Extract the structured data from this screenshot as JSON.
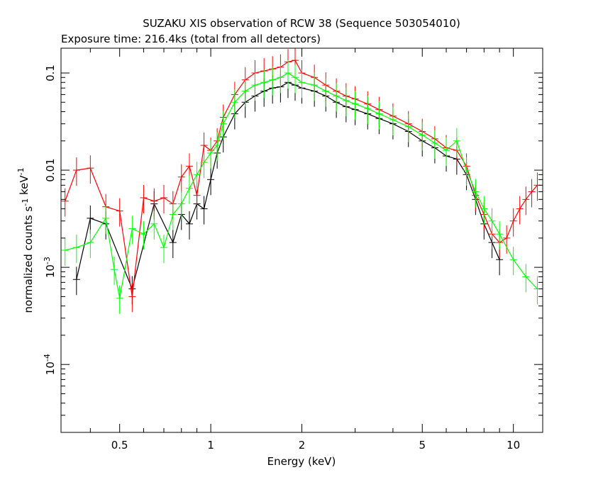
{
  "chart_data": {
    "type": "scatter",
    "title": "SUZAKU XIS observation of RCW 38 (Sequence 503054010)",
    "subtitle": "Exposure time: 216.4ks (total from all detectors)",
    "xlabel": "Energy (keV)",
    "ylabel": "normalized counts s-1 keV-1",
    "x_scale": "log",
    "y_scale": "log",
    "xlim": [
      0.32,
      12.5
    ],
    "ylim": [
      2e-05,
      0.18
    ],
    "x_ticks": [
      {
        "value": 0.5,
        "label": "0.5"
      },
      {
        "value": 1,
        "label": "1"
      },
      {
        "value": 2,
        "label": "2"
      },
      {
        "value": 5,
        "label": "5"
      },
      {
        "value": 10,
        "label": "10"
      }
    ],
    "y_ticks": [
      {
        "value": 0.1,
        "label": "0.1"
      },
      {
        "value": 0.01,
        "label": "0.01"
      },
      {
        "value": 0.001,
        "label": "10",
        "exp": "-3"
      },
      {
        "value": 0.0001,
        "label": "10",
        "exp": "-4"
      }
    ],
    "series": [
      {
        "color": "#000000",
        "points": [
          [
            0.36,
            0.00075
          ],
          [
            0.4,
            0.0032
          ],
          [
            0.45,
            0.0028
          ],
          [
            0.55,
            0.0006
          ],
          [
            0.65,
            0.0045
          ],
          [
            0.75,
            0.0018
          ],
          [
            0.8,
            0.0035
          ],
          [
            0.85,
            0.0028
          ],
          [
            0.9,
            0.0045
          ],
          [
            0.95,
            0.004
          ],
          [
            1.0,
            0.008
          ],
          [
            1.05,
            0.015
          ],
          [
            1.1,
            0.022
          ],
          [
            1.2,
            0.038
          ],
          [
            1.3,
            0.05
          ],
          [
            1.4,
            0.058
          ],
          [
            1.5,
            0.065
          ],
          [
            1.6,
            0.07
          ],
          [
            1.7,
            0.072
          ],
          [
            1.8,
            0.08
          ],
          [
            1.9,
            0.075
          ],
          [
            2.0,
            0.07
          ],
          [
            2.2,
            0.065
          ],
          [
            2.4,
            0.058
          ],
          [
            2.6,
            0.05
          ],
          [
            2.8,
            0.045
          ],
          [
            3.0,
            0.042
          ],
          [
            3.3,
            0.038
          ],
          [
            3.6,
            0.034
          ],
          [
            4.0,
            0.03
          ],
          [
            4.5,
            0.025
          ],
          [
            5.0,
            0.02
          ],
          [
            5.5,
            0.017
          ],
          [
            6.0,
            0.014
          ],
          [
            6.5,
            0.013
          ],
          [
            7.0,
            0.009
          ],
          [
            7.5,
            0.005
          ],
          [
            8.0,
            0.0028
          ],
          [
            8.5,
            0.0018
          ],
          [
            9.0,
            0.0012
          ]
        ]
      },
      {
        "color": "#ff0000",
        "points": [
          [
            0.33,
            0.0048
          ],
          [
            0.36,
            0.01
          ],
          [
            0.4,
            0.0105
          ],
          [
            0.45,
            0.0042
          ],
          [
            0.5,
            0.0038
          ],
          [
            0.55,
            0.0005
          ],
          [
            0.6,
            0.0052
          ],
          [
            0.65,
            0.0048
          ],
          [
            0.7,
            0.0052
          ],
          [
            0.75,
            0.0045
          ],
          [
            0.8,
            0.0085
          ],
          [
            0.85,
            0.011
          ],
          [
            0.9,
            0.0055
          ],
          [
            0.95,
            0.018
          ],
          [
            1.0,
            0.016
          ],
          [
            1.05,
            0.02
          ],
          [
            1.1,
            0.035
          ],
          [
            1.2,
            0.06
          ],
          [
            1.3,
            0.085
          ],
          [
            1.4,
            0.1
          ],
          [
            1.5,
            0.105
          ],
          [
            1.6,
            0.11
          ],
          [
            1.7,
            0.115
          ],
          [
            1.8,
            0.13
          ],
          [
            1.9,
            0.135
          ],
          [
            2.0,
            0.1
          ],
          [
            2.2,
            0.09
          ],
          [
            2.4,
            0.075
          ],
          [
            2.6,
            0.065
          ],
          [
            2.8,
            0.058
          ],
          [
            3.0,
            0.054
          ],
          [
            3.3,
            0.048
          ],
          [
            3.6,
            0.042
          ],
          [
            4.0,
            0.036
          ],
          [
            4.5,
            0.03
          ],
          [
            5.0,
            0.025
          ],
          [
            5.5,
            0.021
          ],
          [
            6.0,
            0.017
          ],
          [
            6.5,
            0.016
          ],
          [
            7.0,
            0.011
          ],
          [
            7.5,
            0.0055
          ],
          [
            8.0,
            0.0035
          ],
          [
            8.5,
            0.0022
          ],
          [
            9.0,
            0.0018
          ],
          [
            9.5,
            0.002
          ],
          [
            10.0,
            0.003
          ],
          [
            10.5,
            0.004
          ],
          [
            11.0,
            0.005
          ],
          [
            11.5,
            0.006
          ],
          [
            12.0,
            0.007
          ]
        ]
      },
      {
        "color": "#00ff00",
        "points": [
          [
            0.33,
            0.0015
          ],
          [
            0.36,
            0.0016
          ],
          [
            0.4,
            0.0018
          ],
          [
            0.45,
            0.0032
          ],
          [
            0.48,
            0.00095
          ],
          [
            0.5,
            0.00048
          ],
          [
            0.55,
            0.0025
          ],
          [
            0.6,
            0.0022
          ],
          [
            0.65,
            0.0028
          ],
          [
            0.7,
            0.0016
          ],
          [
            0.75,
            0.0035
          ],
          [
            0.8,
            0.0045
          ],
          [
            0.85,
            0.0065
          ],
          [
            0.9,
            0.009
          ],
          [
            0.95,
            0.012
          ],
          [
            1.0,
            0.015
          ],
          [
            1.05,
            0.018
          ],
          [
            1.1,
            0.03
          ],
          [
            1.2,
            0.05
          ],
          [
            1.3,
            0.065
          ],
          [
            1.4,
            0.075
          ],
          [
            1.5,
            0.08
          ],
          [
            1.6,
            0.085
          ],
          [
            1.7,
            0.09
          ],
          [
            1.8,
            0.1
          ],
          [
            1.9,
            0.09
          ],
          [
            2.0,
            0.08
          ],
          [
            2.2,
            0.075
          ],
          [
            2.4,
            0.065
          ],
          [
            2.6,
            0.058
          ],
          [
            2.8,
            0.052
          ],
          [
            3.0,
            0.048
          ],
          [
            3.3,
            0.043
          ],
          [
            3.6,
            0.038
          ],
          [
            4.0,
            0.033
          ],
          [
            4.5,
            0.028
          ],
          [
            5.0,
            0.023
          ],
          [
            5.5,
            0.019
          ],
          [
            6.0,
            0.016
          ],
          [
            6.5,
            0.02
          ],
          [
            7.0,
            0.01
          ],
          [
            7.5,
            0.006
          ],
          [
            8.0,
            0.004
          ],
          [
            8.5,
            0.003
          ],
          [
            9.0,
            0.0022
          ],
          [
            10.0,
            0.0012
          ],
          [
            11.0,
            0.0008
          ],
          [
            12.0,
            0.0006
          ]
        ]
      }
    ]
  }
}
